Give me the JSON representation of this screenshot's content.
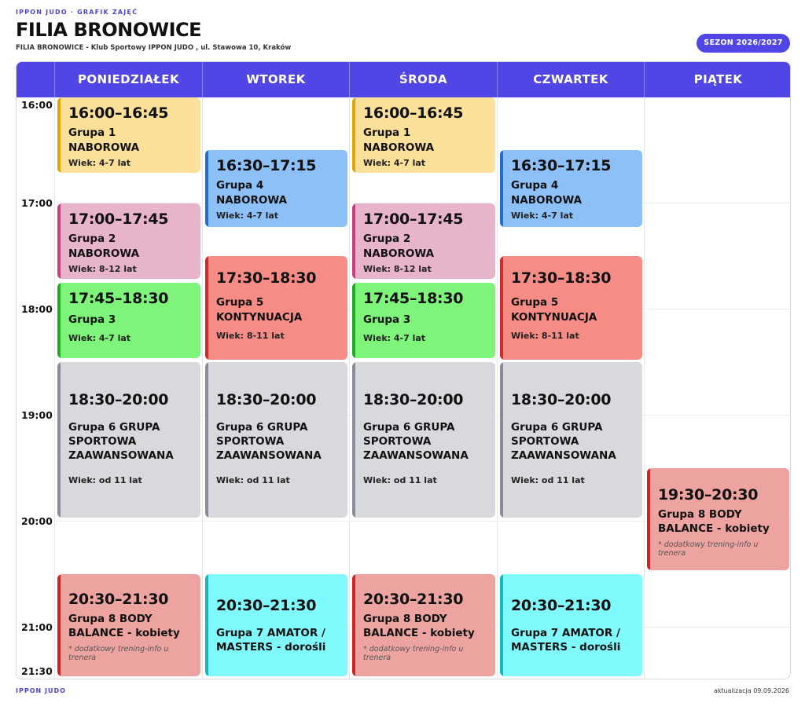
{
  "header": {
    "kicker": "IPPON JUDO · GRAFIK ZAJĘĆ",
    "title": "FILIA BRONOWICE",
    "subtitle": "FILIA BRONOWICE - Klub Sportowy IPPON JUDO , ul. Stawowa 10, Kraków",
    "season": "SEZON 2026/2027"
  },
  "days": [
    "PONIEDZIAŁEK",
    "WTOREK",
    "ŚRODA",
    "CZWARTEK",
    "PIĄTEK"
  ],
  "time_labels": [
    "16:00",
    "17:00",
    "18:00",
    "19:00",
    "20:00",
    "21:00",
    "21:30"
  ],
  "colors": {
    "accent": "#5046e5",
    "yellow_bg": "#fbe09a",
    "yellow_bar": "#e0a800",
    "pink_bg": "#e8b4cb",
    "pink_bar": "#cc3d7d",
    "green_bg": "#7ef57a",
    "green_bar": "#1faa1f",
    "blue_bg": "#8ec0f8",
    "blue_bar": "#1f6fd0",
    "red_bg": "#f68c86",
    "red_bar": "#d42a2a",
    "gray_bg": "#d8d9dc",
    "gray_bar": "#8a8d98",
    "rose_bg": "#eda4a1",
    "rose_bar": "#cf2222",
    "cyan_bg": "#7ff9fb",
    "cyan_bar": "#18b6c2"
  },
  "sessions": {
    "mon1": {
      "time": "16:00–16:45",
      "group": "Grupa 1",
      "level": "NABOROWA",
      "age": "Wiek: 4-7 lat"
    },
    "mon2": {
      "time": "17:00–17:45",
      "group": "Grupa 2",
      "level": "NABOROWA",
      "age": "Wiek: 8-12 lat"
    },
    "mon3": {
      "time": "17:45–18:30",
      "group": "Grupa 3",
      "age": "Wiek: 4-7 lat"
    },
    "mon4": {
      "time": "18:30–20:00",
      "group": "Grupa 6 GRUPA SPORTOWA ZAAWANSOWANA",
      "age": "Wiek: od 11 lat"
    },
    "mon5": {
      "time": "20:30–21:30",
      "group": "Grupa 8 BODY BALANCE - kobiety",
      "note": "* dodatkowy trening-info u trenera"
    },
    "tue1": {
      "time": "16:30–17:15",
      "group": "Grupa 4",
      "level": "NABOROWA",
      "age": "Wiek: 4-7 lat"
    },
    "tue2": {
      "time": "17:30–18:30",
      "group": "Grupa 5",
      "level": "KONTYNUACJA",
      "age": "Wiek: 8-11 lat"
    },
    "tue3": {
      "time": "18:30–20:00",
      "group": "Grupa 6 GRUPA SPORTOWA ZAAWANSOWANA",
      "age": "Wiek: od 11 lat"
    },
    "tue4": {
      "time": "20:30–21:30",
      "group": "Grupa 7 AMATOR / MASTERS - dorośli"
    },
    "wed1": {
      "time": "16:00–16:45",
      "group": "Grupa 1",
      "level": "NABOROWA",
      "age": "Wiek: 4-7 lat"
    },
    "wed2": {
      "time": "17:00–17:45",
      "group": "Grupa 2",
      "level": "NABOROWA",
      "age": "Wiek: 8-12 lat"
    },
    "wed3": {
      "time": "17:45–18:30",
      "group": "Grupa 3",
      "age": "Wiek: 4-7 lat"
    },
    "wed4": {
      "time": "18:30–20:00",
      "group": "Grupa 6 GRUPA SPORTOWA ZAAWANSOWANA",
      "age": "Wiek: od 11 lat"
    },
    "wed5": {
      "time": "20:30–21:30",
      "group": "Grupa 8 BODY BALANCE - kobiety",
      "note": "* dodatkowy trening-info u trenera"
    },
    "thu1": {
      "time": "16:30–17:15",
      "group": "Grupa 4",
      "level": "NABOROWA",
      "age": "Wiek: 4-7 lat"
    },
    "thu2": {
      "time": "17:30–18:30",
      "group": "Grupa 5",
      "level": "KONTYNUACJA",
      "age": "Wiek: 8-11 lat"
    },
    "thu3": {
      "time": "18:30–20:00",
      "group": "Grupa 6 GRUPA SPORTOWA ZAAWANSOWANA",
      "age": "Wiek: od 11 lat"
    },
    "thu4": {
      "time": "20:30–21:30",
      "group": "Grupa 7 AMATOR / MASTERS - dorośli"
    },
    "fri1": {
      "time": "19:30–20:30",
      "group": "Grupa 8 BODY BALANCE - kobiety",
      "note": "* dodatkowy trening-info u trenera"
    }
  },
  "footer": {
    "left": "IPPON JUDO",
    "right": "aktualizacja 09.09.2026"
  }
}
